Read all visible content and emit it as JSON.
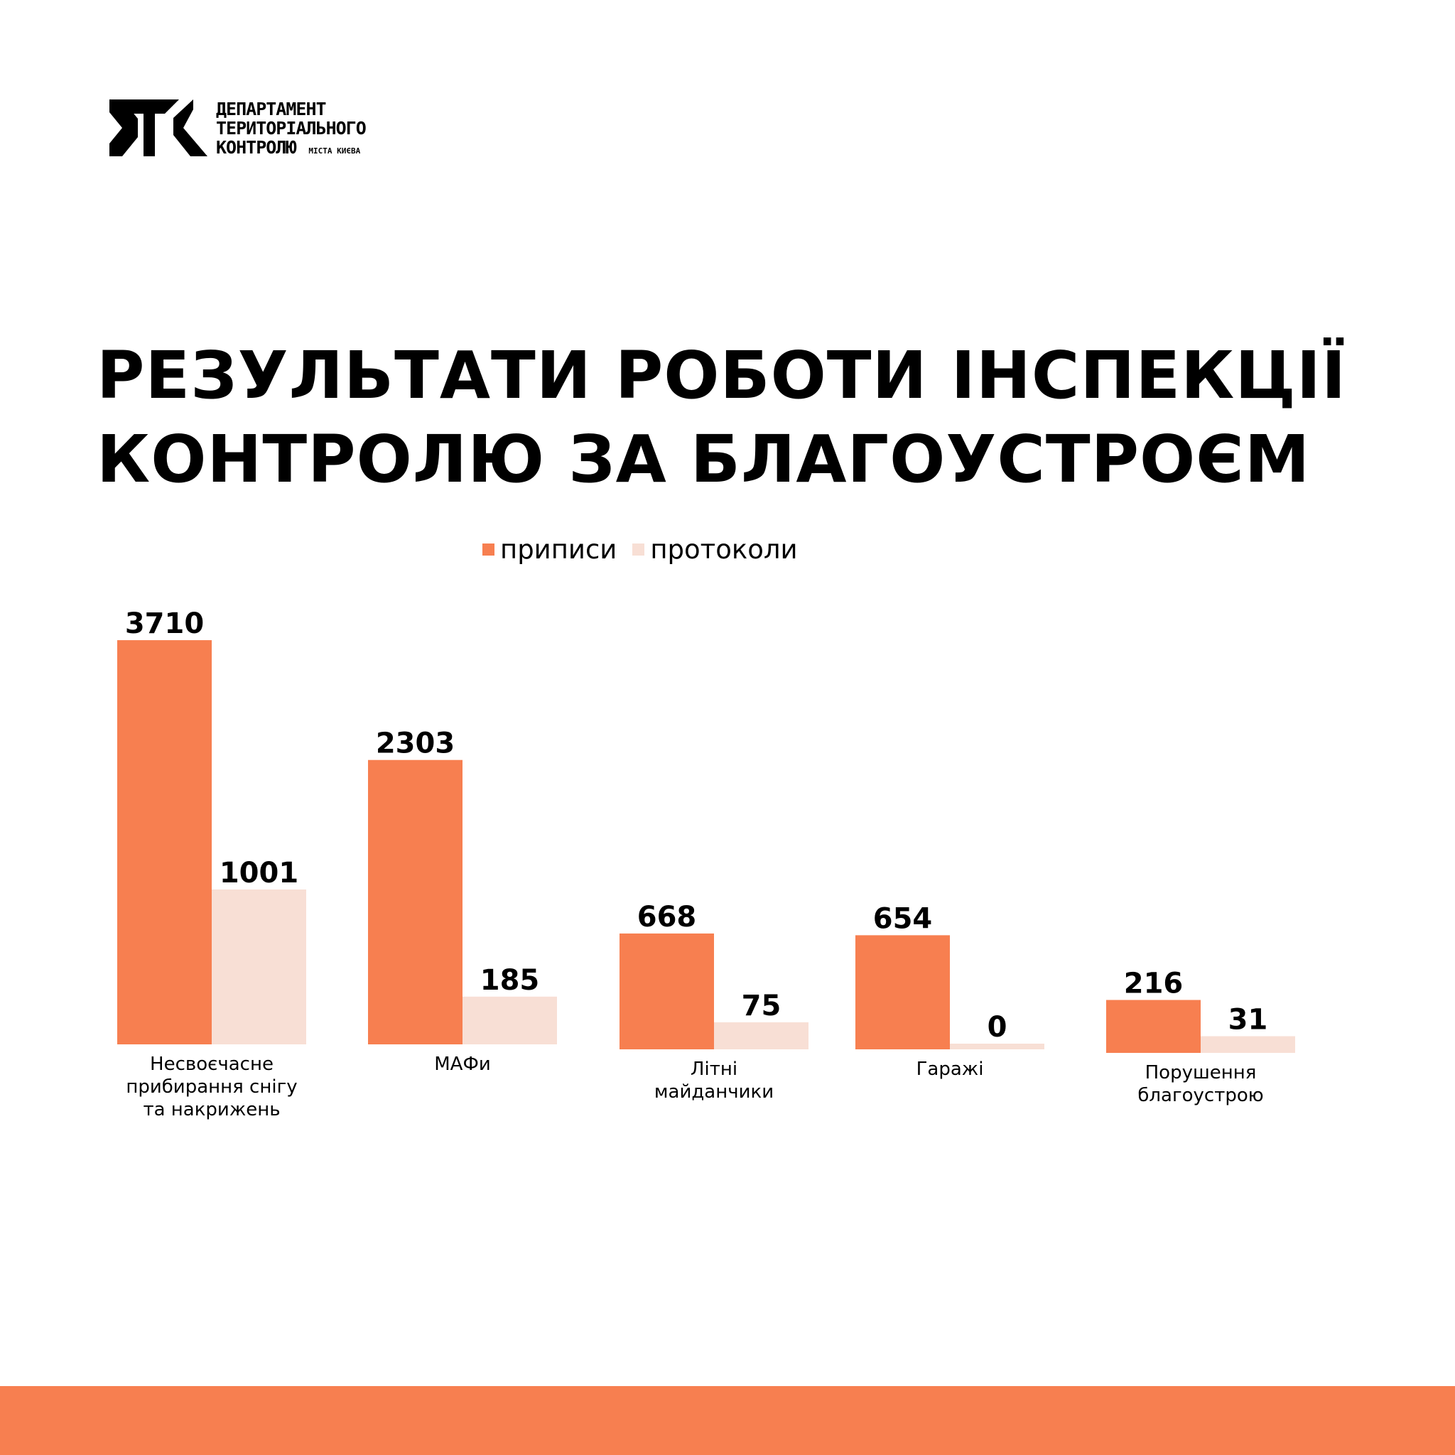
{
  "logo": {
    "line1": "ДЕПАРТАМЕНТ",
    "line2": "ТЕРИТОРІАЛЬНОГО",
    "line3": "КОНТРОЛЮ",
    "sub": "МІСТА КИЄВА"
  },
  "title": {
    "line1": "РЕЗУЛЬТАТИ РОБОТИ ІНСПЕКЦІЇ",
    "line2": "КОНТРОЛЮ ЗА БЛАГОУСТРОЄМ"
  },
  "colors": {
    "accent": "#F77F50",
    "light": "#F8DFD5",
    "text": "#000000"
  },
  "chart_data": {
    "type": "bar",
    "title": "РЕЗУЛЬТАТИ РОБОТИ ІНСПЕКЦІЇ КОНТРОЛЮ ЗА БЛАГОУСТРОЄМ",
    "legend_position": "top-center",
    "grid": false,
    "categories": [
      [
        "Несвоєчасне",
        "прибирання снігу",
        "та накрижень"
      ],
      [
        "МАФи"
      ],
      [
        "Літні",
        "майданчики"
      ],
      [
        "Гаражі"
      ],
      [
        "Порушення",
        "благоустрою"
      ]
    ],
    "series": [
      {
        "name": "приписи",
        "color": "#F77F50",
        "values": [
          3710,
          2303,
          668,
          654,
          216
        ]
      },
      {
        "name": "протоколи",
        "color": "#F8DFD5",
        "values": [
          1001,
          185,
          75,
          0,
          31
        ]
      }
    ]
  }
}
